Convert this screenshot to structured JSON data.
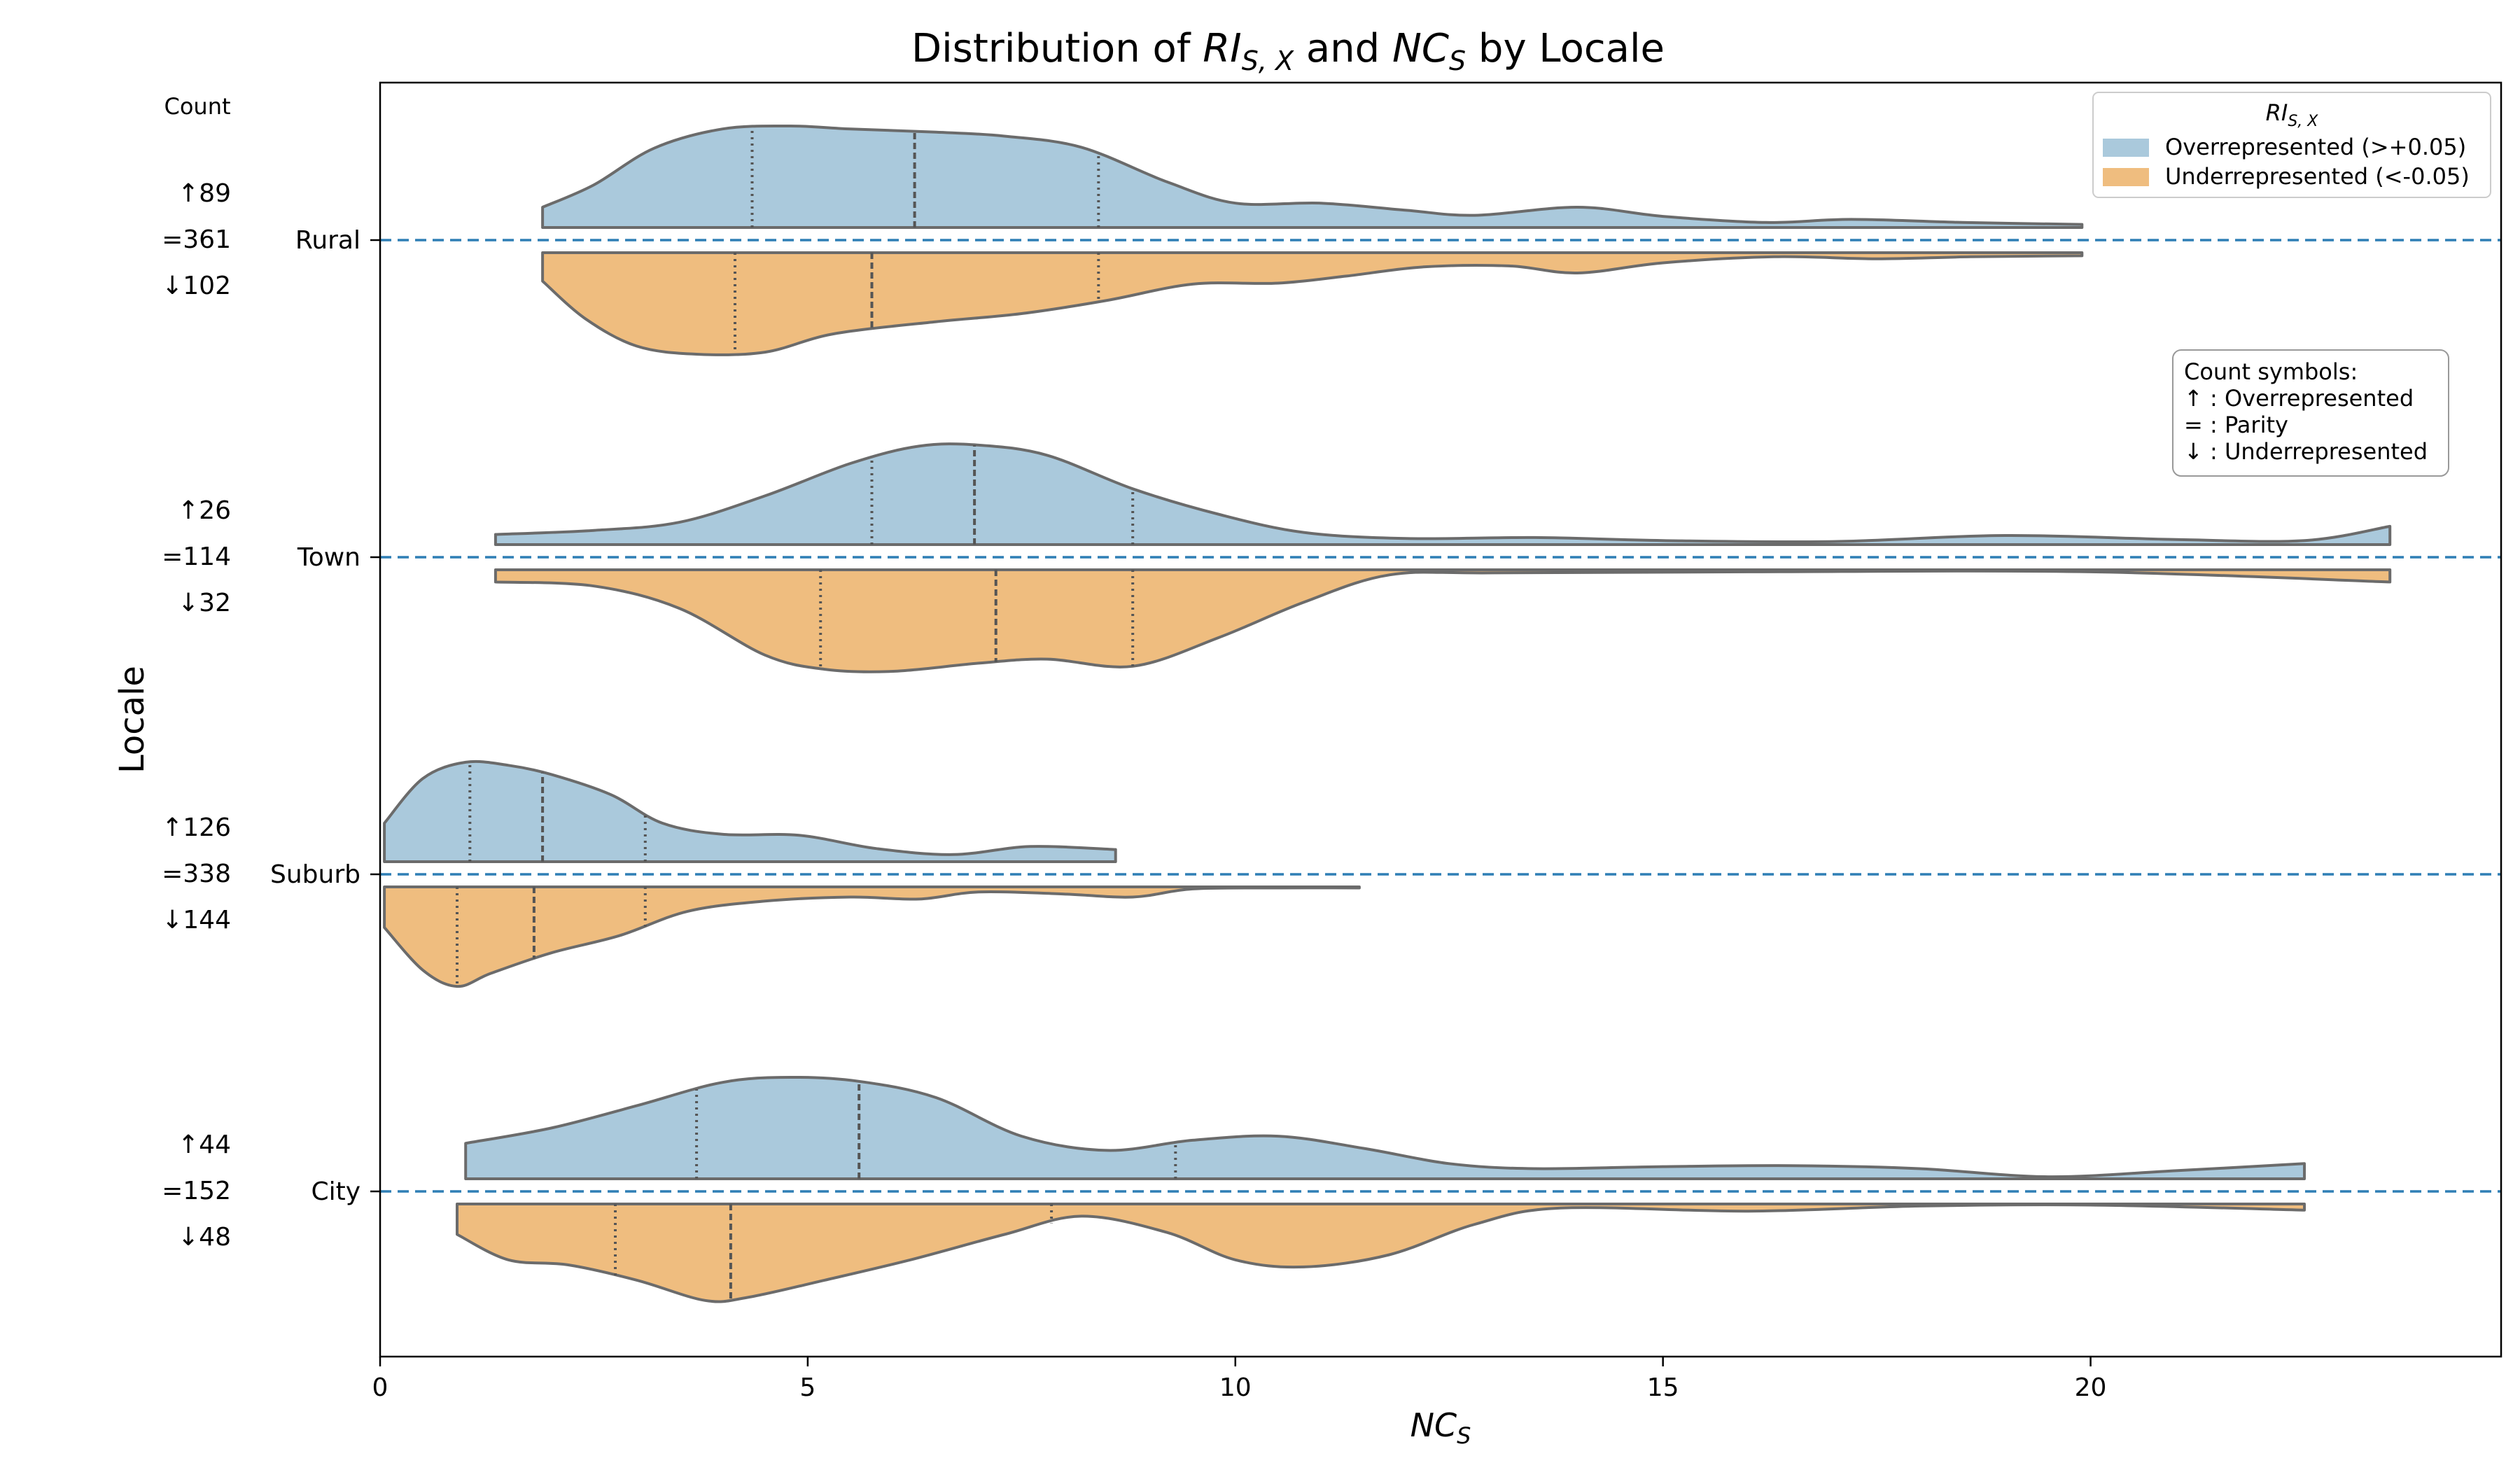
{
  "chart_data": {
    "type": "violin",
    "title": {
      "prefix": "Distribution of ",
      "ri_main": "RI",
      "ri_sub": "S, X",
      "mid": " and ",
      "nc_main": "NC",
      "nc_sub": "S",
      "suffix": " by Locale"
    },
    "xlabel": {
      "main": "NC",
      "sub": "S"
    },
    "ylabel": "Locale",
    "xlim": [
      0,
      24.8
    ],
    "x_ticks": [
      0,
      5,
      10,
      15,
      20
    ],
    "count_header": "Count",
    "colors": {
      "over": "#aac9dc",
      "under": "#efbd7f",
      "outline": "#6b6b6b",
      "median_line": "#2f7fb5"
    },
    "legend": {
      "title_main": "RI",
      "title_sub": "S, X",
      "placement": "upper right",
      "entries": [
        {
          "label": "Overrepresented (>+0.05)",
          "color": "#aac9dc"
        },
        {
          "label": "Underrepresented (<-0.05)",
          "color": "#efbd7f"
        }
      ]
    },
    "symbols_box": {
      "title": "Count symbols:",
      "lines": [
        "↑ : Overrepresented",
        "= : Parity",
        "↓ : Underrepresented"
      ]
    },
    "categories": [
      "Rural",
      "Town",
      "Suburb",
      "City"
    ],
    "locales": [
      {
        "name": "Rural",
        "counts": {
          "over": "↑89",
          "parity": "=361",
          "under": "↓102"
        },
        "over": {
          "range": [
            1.9,
            19.9
          ],
          "quartiles": [
            4.35,
            6.25,
            8.4
          ],
          "density": [
            [
              1.9,
              0.2
            ],
            [
              2.5,
              0.42
            ],
            [
              3.2,
              0.78
            ],
            [
              4.0,
              0.97
            ],
            [
              4.8,
              1.0
            ],
            [
              5.5,
              0.97
            ],
            [
              6.5,
              0.94
            ],
            [
              7.3,
              0.9
            ],
            [
              8.2,
              0.79
            ],
            [
              9.2,
              0.45
            ],
            [
              10.0,
              0.24
            ],
            [
              11.0,
              0.24
            ],
            [
              12.0,
              0.17
            ],
            [
              12.8,
              0.12
            ],
            [
              14.0,
              0.2
            ],
            [
              15.0,
              0.11
            ],
            [
              16.2,
              0.05
            ],
            [
              17.2,
              0.08
            ],
            [
              18.5,
              0.05
            ],
            [
              19.9,
              0.03
            ]
          ]
        },
        "under": {
          "range": [
            1.9,
            19.9
          ],
          "quartiles": [
            4.15,
            5.75,
            8.4
          ],
          "density": [
            [
              1.9,
              0.28
            ],
            [
              2.4,
              0.65
            ],
            [
              3.0,
              0.92
            ],
            [
              3.7,
              1.0
            ],
            [
              4.5,
              0.98
            ],
            [
              5.3,
              0.8
            ],
            [
              6.5,
              0.68
            ],
            [
              7.5,
              0.6
            ],
            [
              8.5,
              0.47
            ],
            [
              9.5,
              0.31
            ],
            [
              10.5,
              0.3
            ],
            [
              11.3,
              0.23
            ],
            [
              12.2,
              0.14
            ],
            [
              13.2,
              0.13
            ],
            [
              14.0,
              0.2
            ],
            [
              15.0,
              0.1
            ],
            [
              16.3,
              0.04
            ],
            [
              17.5,
              0.06
            ],
            [
              18.6,
              0.04
            ],
            [
              19.9,
              0.03
            ]
          ]
        }
      },
      {
        "name": "Town",
        "counts": {
          "over": "↑26",
          "parity": "=114",
          "under": "↓32"
        },
        "over": {
          "range": [
            1.35,
            23.5
          ],
          "quartiles": [
            5.75,
            6.95,
            8.8
          ],
          "density": [
            [
              1.35,
              0.1
            ],
            [
              2.5,
              0.14
            ],
            [
              3.5,
              0.22
            ],
            [
              4.5,
              0.48
            ],
            [
              5.5,
              0.8
            ],
            [
              6.3,
              0.97
            ],
            [
              7.0,
              0.98
            ],
            [
              7.8,
              0.88
            ],
            [
              8.8,
              0.55
            ],
            [
              9.8,
              0.3
            ],
            [
              10.8,
              0.12
            ],
            [
              12.0,
              0.06
            ],
            [
              13.5,
              0.07
            ],
            [
              15.0,
              0.04
            ],
            [
              17.0,
              0.03
            ],
            [
              19.0,
              0.09
            ],
            [
              21.0,
              0.05
            ],
            [
              22.5,
              0.04
            ],
            [
              23.5,
              0.18
            ]
          ]
        },
        "under": {
          "range": [
            1.35,
            23.5
          ],
          "quartiles": [
            5.15,
            7.2,
            8.8
          ],
          "density": [
            [
              1.35,
              0.12
            ],
            [
              2.5,
              0.16
            ],
            [
              3.5,
              0.38
            ],
            [
              4.5,
              0.84
            ],
            [
              5.2,
              0.98
            ],
            [
              6.0,
              1.0
            ],
            [
              7.0,
              0.92
            ],
            [
              7.8,
              0.88
            ],
            [
              8.8,
              0.95
            ],
            [
              9.8,
              0.67
            ],
            [
              10.8,
              0.32
            ],
            [
              11.8,
              0.05
            ],
            [
              13.0,
              0.03
            ],
            [
              16.0,
              0.02
            ],
            [
              20.0,
              0.02
            ],
            [
              23.5,
              0.12
            ]
          ]
        }
      },
      {
        "name": "Suburb",
        "counts": {
          "over": "↑126",
          "parity": "=338",
          "under": "↓144"
        },
        "over": {
          "range": [
            0.05,
            8.6
          ],
          "quartiles": [
            1.05,
            1.9,
            3.1
          ],
          "density": [
            [
              0.05,
              0.38
            ],
            [
              0.5,
              0.82
            ],
            [
              1.0,
              0.98
            ],
            [
              1.5,
              0.95
            ],
            [
              2.0,
              0.86
            ],
            [
              2.7,
              0.66
            ],
            [
              3.3,
              0.38
            ],
            [
              4.0,
              0.27
            ],
            [
              4.9,
              0.26
            ],
            [
              5.8,
              0.13
            ],
            [
              6.7,
              0.07
            ],
            [
              7.6,
              0.15
            ],
            [
              8.6,
              0.12
            ]
          ]
        },
        "under": {
          "range": [
            0.05,
            11.45
          ],
          "quartiles": [
            0.9,
            1.8,
            3.1
          ],
          "density": [
            [
              0.05,
              0.4
            ],
            [
              0.5,
              0.82
            ],
            [
              0.9,
              0.98
            ],
            [
              1.3,
              0.85
            ],
            [
              2.0,
              0.65
            ],
            [
              2.8,
              0.48
            ],
            [
              3.6,
              0.24
            ],
            [
              4.5,
              0.14
            ],
            [
              5.5,
              0.1
            ],
            [
              6.3,
              0.12
            ],
            [
              7.0,
              0.05
            ],
            [
              8.0,
              0.07
            ],
            [
              8.8,
              0.1
            ],
            [
              9.5,
              0.02
            ],
            [
              10.5,
              0.01
            ],
            [
              11.45,
              0.01
            ]
          ]
        }
      },
      {
        "name": "City",
        "counts": {
          "over": "↑44",
          "parity": "=152",
          "under": "↓48"
        },
        "over": {
          "range": [
            1.0,
            22.5
          ],
          "quartiles": [
            3.7,
            5.6,
            9.3
          ],
          "density": [
            [
              1.0,
              0.35
            ],
            [
              2.0,
              0.5
            ],
            [
              3.0,
              0.72
            ],
            [
              4.0,
              0.95
            ],
            [
              4.8,
              1.0
            ],
            [
              5.6,
              0.96
            ],
            [
              6.5,
              0.8
            ],
            [
              7.5,
              0.42
            ],
            [
              8.5,
              0.28
            ],
            [
              9.5,
              0.38
            ],
            [
              10.5,
              0.42
            ],
            [
              11.5,
              0.3
            ],
            [
              12.5,
              0.15
            ],
            [
              13.5,
              0.1
            ],
            [
              15.0,
              0.12
            ],
            [
              16.5,
              0.13
            ],
            [
              18.0,
              0.1
            ],
            [
              19.5,
              0.02
            ],
            [
              21.0,
              0.08
            ],
            [
              22.5,
              0.15
            ]
          ]
        },
        "under": {
          "range": [
            0.9,
            22.5
          ],
          "quartiles": [
            2.75,
            4.1,
            7.85
          ],
          "density": [
            [
              0.9,
              0.3
            ],
            [
              1.5,
              0.55
            ],
            [
              2.2,
              0.6
            ],
            [
              3.0,
              0.75
            ],
            [
              3.8,
              0.95
            ],
            [
              4.3,
              0.92
            ],
            [
              5.2,
              0.75
            ],
            [
              6.2,
              0.55
            ],
            [
              7.3,
              0.3
            ],
            [
              8.2,
              0.12
            ],
            [
              9.2,
              0.28
            ],
            [
              10.0,
              0.55
            ],
            [
              10.8,
              0.62
            ],
            [
              11.8,
              0.5
            ],
            [
              12.8,
              0.2
            ],
            [
              13.8,
              0.04
            ],
            [
              16.0,
              0.07
            ],
            [
              18.0,
              0.02
            ],
            [
              20.0,
              0.01
            ],
            [
              22.5,
              0.06
            ]
          ]
        }
      }
    ]
  }
}
